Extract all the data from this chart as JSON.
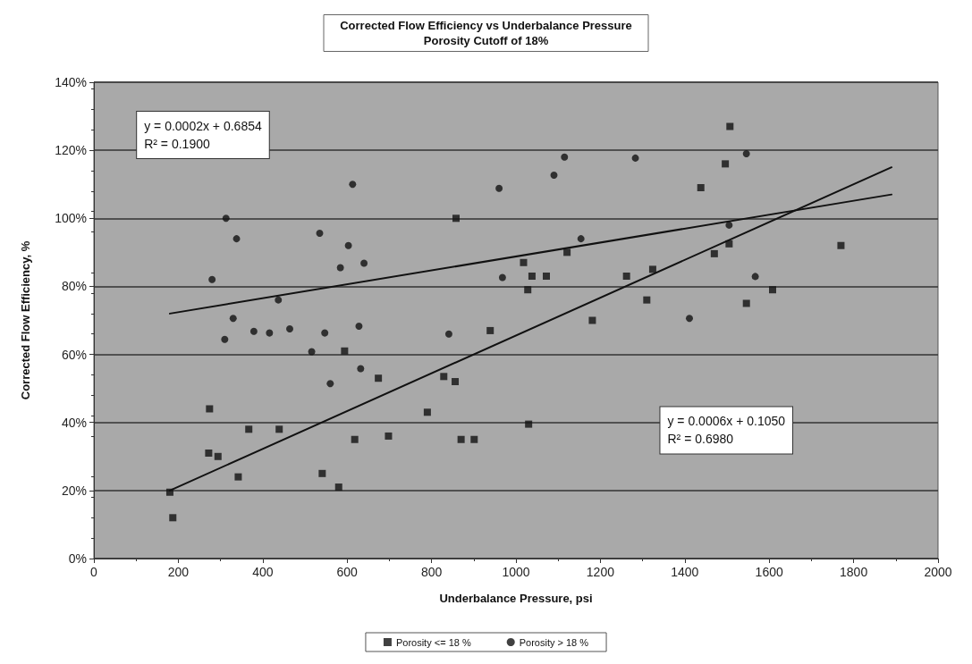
{
  "chart_data": {
    "type": "scatter",
    "title": "Corrected Flow Efficiency vs Underbalance Pressure",
    "subtitle": "Porosity Cutoff of 18%",
    "xlabel": "Underbalance Pressure, psi",
    "ylabel": "Corrected Flow Efficiency, %",
    "xlim": [
      0,
      2000
    ],
    "xticks": [
      0,
      200,
      400,
      600,
      800,
      1000,
      1200,
      1400,
      1600,
      1800,
      2000
    ],
    "ylim": [
      0,
      140
    ],
    "yticks": [
      {
        "value": 0,
        "label": "0%"
      },
      {
        "value": 20,
        "label": "20%"
      },
      {
        "value": 40,
        "label": "40%"
      },
      {
        "value": 60,
        "label": "60%"
      },
      {
        "value": 80,
        "label": "80%"
      },
      {
        "value": 100,
        "label": "100%"
      },
      {
        "value": 120,
        "label": "120%"
      },
      {
        "value": 140,
        "label": "140%"
      }
    ],
    "grid": "y",
    "legend": "bottom",
    "series": [
      {
        "name": "Porosity <= 18 %",
        "color": "#111111",
        "marker": "square",
        "x": [
          180,
          187,
          274,
          272,
          294,
          342,
          367,
          439,
          541,
          580,
          594,
          618,
          674,
          698,
          858,
          1121,
          1018,
          1038,
          1072,
          1028,
          1262,
          1324,
          1310,
          1181,
          939,
          829,
          856,
          790,
          1030,
          870,
          901,
          1507,
          1496,
          1438,
          1505,
          1470,
          1770,
          1608,
          1546
        ],
        "values": [
          19.5,
          12,
          44,
          31,
          30,
          24,
          38,
          38,
          25,
          21,
          61,
          35,
          53,
          36,
          100,
          90,
          87,
          83,
          83,
          79,
          83,
          85,
          76,
          70,
          67,
          53.5,
          52,
          43,
          39.5,
          35,
          35,
          127,
          116,
          109,
          92.5,
          89.6,
          92,
          79,
          75
        ]
      },
      {
        "name": "Porosity > 18 %",
        "color": "#111111",
        "marker": "circle",
        "x": [
          313,
          338,
          280,
          613,
          535,
          603,
          584,
          640,
          437,
          330,
          310,
          379,
          416,
          464,
          547,
          628,
          516,
          632,
          560,
          1115,
          1283,
          1090,
          960,
          1154,
          968,
          841,
          1546,
          1505,
          1567,
          1411
        ],
        "values": [
          100,
          94,
          82,
          110,
          95.6,
          92,
          85.5,
          86.8,
          76,
          70.6,
          64.4,
          66.8,
          66.3,
          67.5,
          66.3,
          68.3,
          60.8,
          55.8,
          51.4,
          118,
          117.7,
          112.7,
          108.8,
          94,
          82.6,
          66,
          119,
          98,
          82.9,
          70.6
        ]
      },
      {
        "type": "line",
        "color": "#111111",
        "marker": "none",
        "line_style": "solid",
        "x": [
          180,
          1890
        ],
        "values": [
          72,
          107
        ]
      },
      {
        "type": "line",
        "color": "#111111",
        "marker": "none",
        "line_style": "solid",
        "x": [
          180,
          1890
        ],
        "values": [
          20,
          115
        ]
      }
    ],
    "annotations": [
      "y = 0.0002x + 0.6854\nR² = 0.1900",
      "y = 0.0006x + 0.1050\nR² = 0.6980"
    ]
  }
}
